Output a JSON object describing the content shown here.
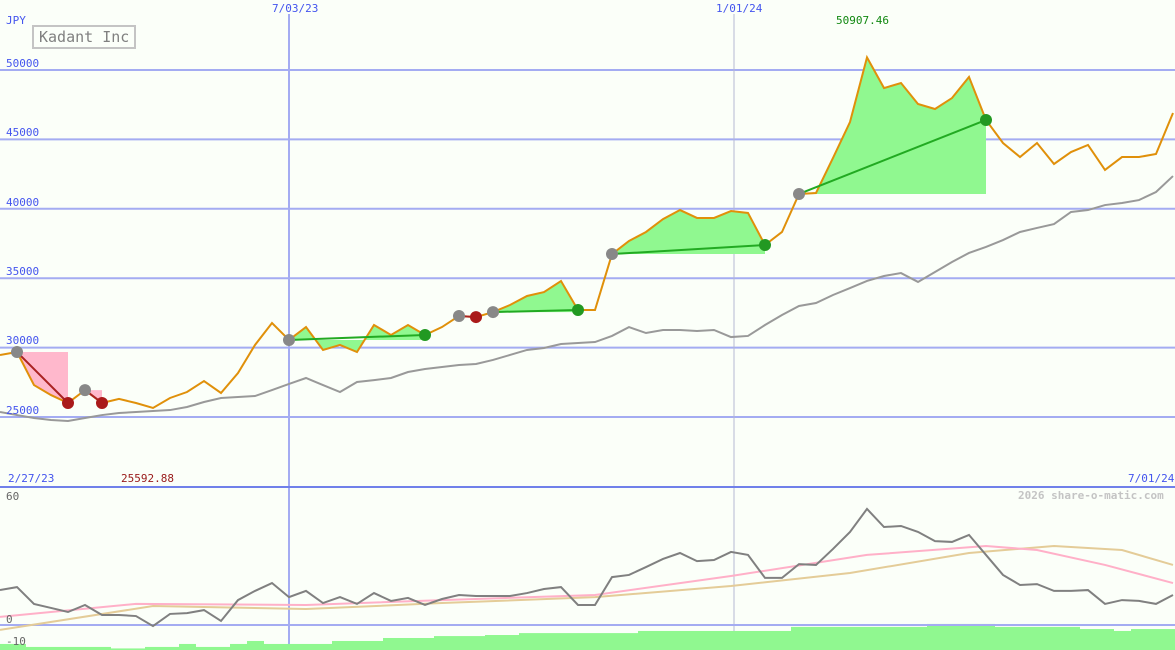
{
  "chart_data": [
    {
      "type": "line",
      "title": "Kadant Inc",
      "ylabel": "JPY",
      "ylim": [
        25000,
        50000
      ],
      "yticks": [
        "50000",
        "45000",
        "40000",
        "35000",
        "30000",
        "25000"
      ],
      "xticks_top": [
        "7/03/23",
        "1/01/24"
      ],
      "x_start": "2/27/23",
      "x_end": "7/01/24",
      "max_label": "50907.46",
      "min_label": "25592.88",
      "grid": true,
      "series": [
        {
          "role": "price",
          "color": "#e0900a",
          "values": [
            29470,
            29680,
            27300,
            26580,
            26010,
            26940,
            26010,
            26300,
            26010,
            25650,
            26370,
            26800,
            27590,
            26730,
            28170,
            30190,
            31770,
            30550,
            31480,
            29830,
            30190,
            29680,
            31630,
            30910,
            31630,
            30910,
            31480,
            32280,
            32200,
            32560,
            33070,
            33720,
            34000,
            34800,
            32710,
            32710,
            36740,
            37680,
            38330,
            39260,
            39910,
            39340,
            39340,
            39840,
            39700,
            37390,
            38330,
            41070,
            41140,
            43660,
            46250,
            50907,
            48700,
            49060,
            47550,
            47190,
            47980,
            49500,
            46400,
            44740,
            43730,
            44740,
            43230,
            44090,
            44600,
            42800,
            43730,
            43730,
            43950,
            46900
          ]
        },
        {
          "role": "moving-average",
          "color": "#999999",
          "values": [
            25360,
            25140,
            24930,
            24780,
            24710,
            24930,
            25140,
            25290,
            25360,
            25430,
            25500,
            25720,
            26080,
            26370,
            26440,
            26510,
            26940,
            27380,
            27810,
            27300,
            26800,
            27520,
            27660,
            27810,
            28240,
            28460,
            28600,
            28750,
            28820,
            29110,
            29470,
            29830,
            29970,
            30260,
            30330,
            30400,
            30840,
            31480,
            31050,
            31270,
            31270,
            31200,
            31270,
            30760,
            30840,
            31630,
            32350,
            33000,
            33210,
            33790,
            34290,
            34800,
            35160,
            35370,
            34730,
            35450,
            36170,
            36820,
            37250,
            37750,
            38330,
            38620,
            38900,
            39770,
            39910,
            40270,
            40420,
            40630,
            41210,
            42360
          ]
        }
      ],
      "trades": [
        {
          "entry": 1,
          "exit": 4,
          "result": "loss"
        },
        {
          "entry": 5,
          "exit": 6,
          "result": "loss"
        },
        {
          "entry": 17,
          "exit": 25,
          "result": "win"
        },
        {
          "entry": 27,
          "exit": 28,
          "result": "loss"
        },
        {
          "entry": 29,
          "exit": 34,
          "result": "win"
        },
        {
          "entry": 36,
          "exit": 45,
          "result": "win"
        },
        {
          "entry": 47,
          "exit": 58,
          "result": "win"
        }
      ],
      "colors": {
        "win_fill": "#90f890",
        "loss_fill": "#ffb8cc",
        "win_line": "#22aa22",
        "loss_line": "#aa2222",
        "entry_marker": "#888888",
        "win_marker": "#229922",
        "loss_marker": "#aa1a1a"
      }
    },
    {
      "type": "line",
      "ylim": [
        -10,
        60
      ],
      "yticks": [
        "60",
        "0",
        "-10"
      ],
      "watermark": "2026 share-o-matic.com",
      "series": [
        {
          "role": "oscillator",
          "color": "#808080",
          "values": [
            16.4,
            17.8,
            9.9,
            8.0,
            6.1,
            9.4,
            4.7,
            4.7,
            4.2,
            -0.5,
            5.2,
            5.6,
            7.0,
            1.9,
            11.7,
            16.0,
            19.7,
            13.1,
            16.0,
            10.3,
            13.1,
            9.9,
            15.0,
            11.3,
            12.7,
            9.4,
            12.2,
            14.1,
            13.6,
            13.6,
            13.6,
            15.0,
            16.9,
            17.8,
            9.4,
            9.4,
            22.5,
            23.5,
            27.2,
            31.0,
            33.8,
            30.0,
            30.5,
            34.3,
            32.9,
            22.1,
            22.1,
            28.6,
            28.2,
            35.7,
            43.7,
            54.5,
            46.0,
            46.5,
            43.7,
            39.4,
            39.0,
            42.3,
            32.9,
            23.5,
            18.8,
            19.2,
            16.0,
            16.0,
            16.4,
            9.9,
            11.7,
            11.3,
            9.9,
            14.1
          ]
        },
        {
          "role": "signal-fast",
          "color": "#ffb0c8",
          "points": [
            [
              0,
              3.8
            ],
            [
              8,
              9.9
            ],
            [
              18,
              9.4
            ],
            [
              26,
              11.7
            ],
            [
              35,
              14.1
            ],
            [
              43,
              23.0
            ],
            [
              51,
              32.9
            ],
            [
              58,
              37.1
            ],
            [
              61,
              35.2
            ],
            [
              65,
              28.2
            ],
            [
              69,
              19.7
            ]
          ]
        },
        {
          "role": "signal-slow",
          "color": "#e4cc98",
          "points": [
            [
              0,
              -2.3
            ],
            [
              9,
              8.9
            ],
            [
              18,
              7.5
            ],
            [
              26,
              10.3
            ],
            [
              35,
              13.1
            ],
            [
              43,
              18.3
            ],
            [
              50,
              24.4
            ],
            [
              57,
              33.8
            ],
            [
              62,
              37.1
            ],
            [
              66,
              35.2
            ],
            [
              69,
              28.2
            ]
          ]
        },
        {
          "role": "histogram",
          "color": "#90f890",
          "values": [
            -8.9,
            -8.9,
            -10.3,
            -10.3,
            -10.3,
            -10.3,
            -10.3,
            -11,
            -11,
            -10.3,
            -10.3,
            -8.9,
            -10.3,
            -10.3,
            -8.9,
            -7.5,
            -8.9,
            -8.9,
            -8.9,
            -8.9,
            -7.5,
            -7.5,
            -7.5,
            -6.1,
            -6.1,
            -6.1,
            -5.2,
            -5.2,
            -5.2,
            -4.7,
            -4.7,
            -3.8,
            -3.8,
            -3.8,
            -3.8,
            -3.8,
            -3.8,
            -3.8,
            -2.8,
            -2.8,
            -2.8,
            -2.8,
            -2.8,
            -2.8,
            -2.8,
            -2.8,
            -2.8,
            -0.9,
            -0.9,
            -0.9,
            -0.9,
            -0.9,
            -0.9,
            -0.9,
            -0.9,
            0.5,
            0.5,
            0.5,
            0.5,
            -0.9,
            -0.9,
            -0.9,
            -0.9,
            -0.9,
            -1.9,
            -1.9,
            -2.8,
            -1.9,
            -1.9,
            -1.9
          ]
        }
      ]
    }
  ]
}
